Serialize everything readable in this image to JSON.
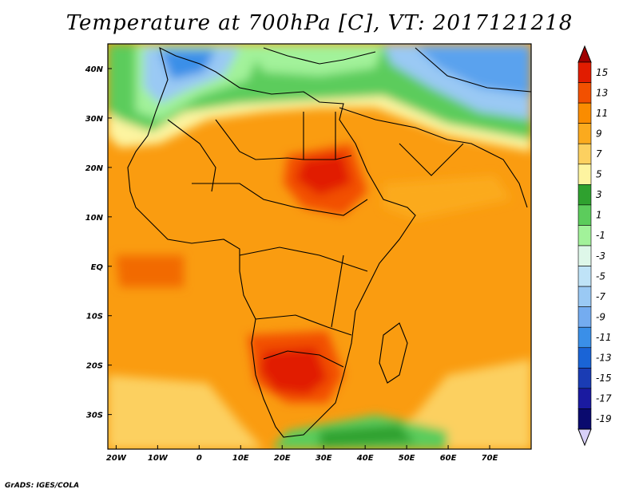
{
  "title": "Temperature at 700hPa [C], VT: 2017121218",
  "footer": "GrADS: IGES/COLA",
  "map": {
    "lon_labels": [
      "20W",
      "10W",
      "0",
      "10E",
      "20E",
      "30E",
      "40E",
      "50E",
      "60E",
      "70E"
    ],
    "lat_labels": [
      "40N",
      "30N",
      "20N",
      "10N",
      "EQ",
      "10S",
      "20S",
      "30S"
    ],
    "lon_values": [
      -20,
      -10,
      0,
      10,
      20,
      30,
      40,
      50,
      60,
      70
    ],
    "lat_values": [
      40,
      30,
      20,
      10,
      0,
      -10,
      -20,
      -30
    ],
    "lon_range": [
      -22,
      80
    ],
    "lat_range": [
      -37,
      45
    ]
  },
  "colorbar": {
    "labels": [
      "15",
      "13",
      "11",
      "9",
      "7",
      "5",
      "3",
      "1",
      "-1",
      "-3",
      "-5",
      "-7",
      "-9",
      "-11",
      "-13",
      "-15",
      "-17",
      "-19"
    ],
    "colors": [
      "#a00000",
      "#e11c00",
      "#f25000",
      "#fa8c00",
      "#fbaa1e",
      "#fcd060",
      "#fdf4a0",
      "#2fa12f",
      "#5ccc5c",
      "#a2f29a",
      "#def7e9",
      "#bfe3f7",
      "#9ac9f4",
      "#74acf0",
      "#3a8fe8",
      "#1a64d6",
      "#1a3cb4",
      "#1a1aa0",
      "#0a0a6e",
      "#d8d0f8"
    ]
  }
}
